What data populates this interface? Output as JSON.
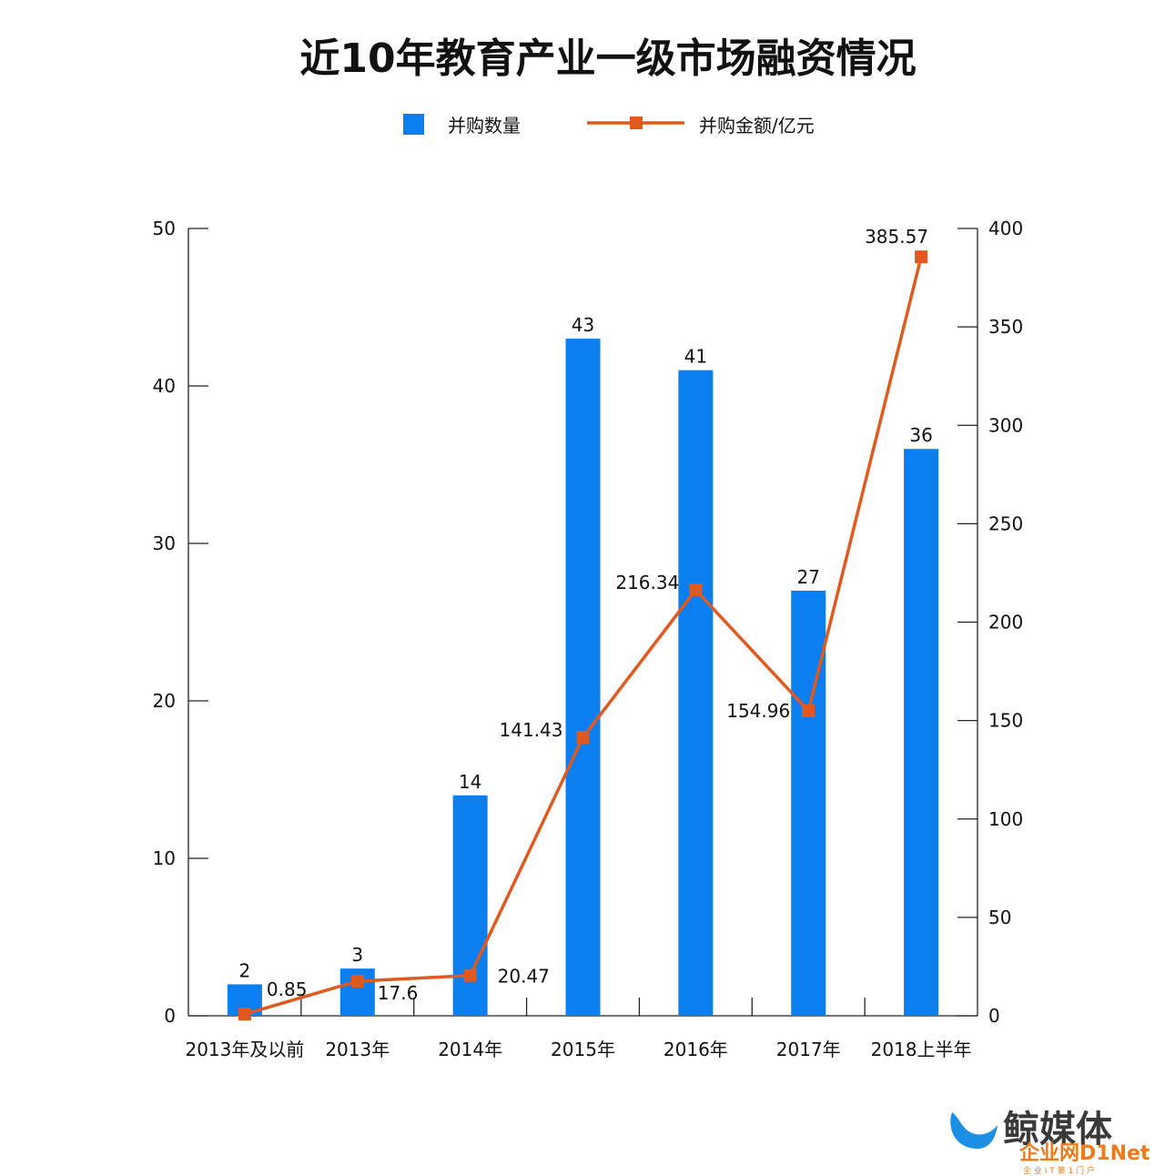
{
  "colors": {
    "bar": "#0b7ef0",
    "line": "#e05a1f",
    "watermark_blue": "#1a8fe3",
    "watermark_orange": "#f07a1a"
  },
  "chart_data": {
    "type": "bar",
    "title": "近10年教育产业一级市场融资情况",
    "categories": [
      "2013年及以前",
      "2013年",
      "2014年",
      "2015年",
      "2016年",
      "2017年",
      "2018上半年"
    ],
    "series": [
      {
        "name": "并购数量",
        "type": "bar",
        "axis": "left",
        "values": [
          2,
          3,
          14,
          43,
          41,
          27,
          36
        ]
      },
      {
        "name": "并购金额/亿元",
        "type": "line",
        "axis": "right",
        "values": [
          0.85,
          17.6,
          20.47,
          141.43,
          216.34,
          154.96,
          385.57
        ]
      }
    ],
    "left_axis": {
      "range": [
        0,
        50
      ],
      "ticks": [
        "0",
        "10",
        "20",
        "30",
        "40",
        "50"
      ]
    },
    "right_axis": {
      "range": [
        0,
        400
      ],
      "ticks": [
        "0",
        "50",
        "100",
        "150",
        "200",
        "250",
        "300",
        "350",
        "400"
      ]
    },
    "bar_labels": [
      "2",
      "3",
      "14",
      "43",
      "41",
      "27",
      "36"
    ],
    "line_labels": [
      "0.85",
      "17.6",
      "20.47",
      "141.43",
      "216.34",
      "154.96",
      "385.57"
    ],
    "legend_position": "top-center",
    "grid": false
  },
  "watermark": {
    "brand": "鲸媒体",
    "site": "企业网D1Net",
    "tagline": "企 业 I T 第 1 门 户"
  }
}
